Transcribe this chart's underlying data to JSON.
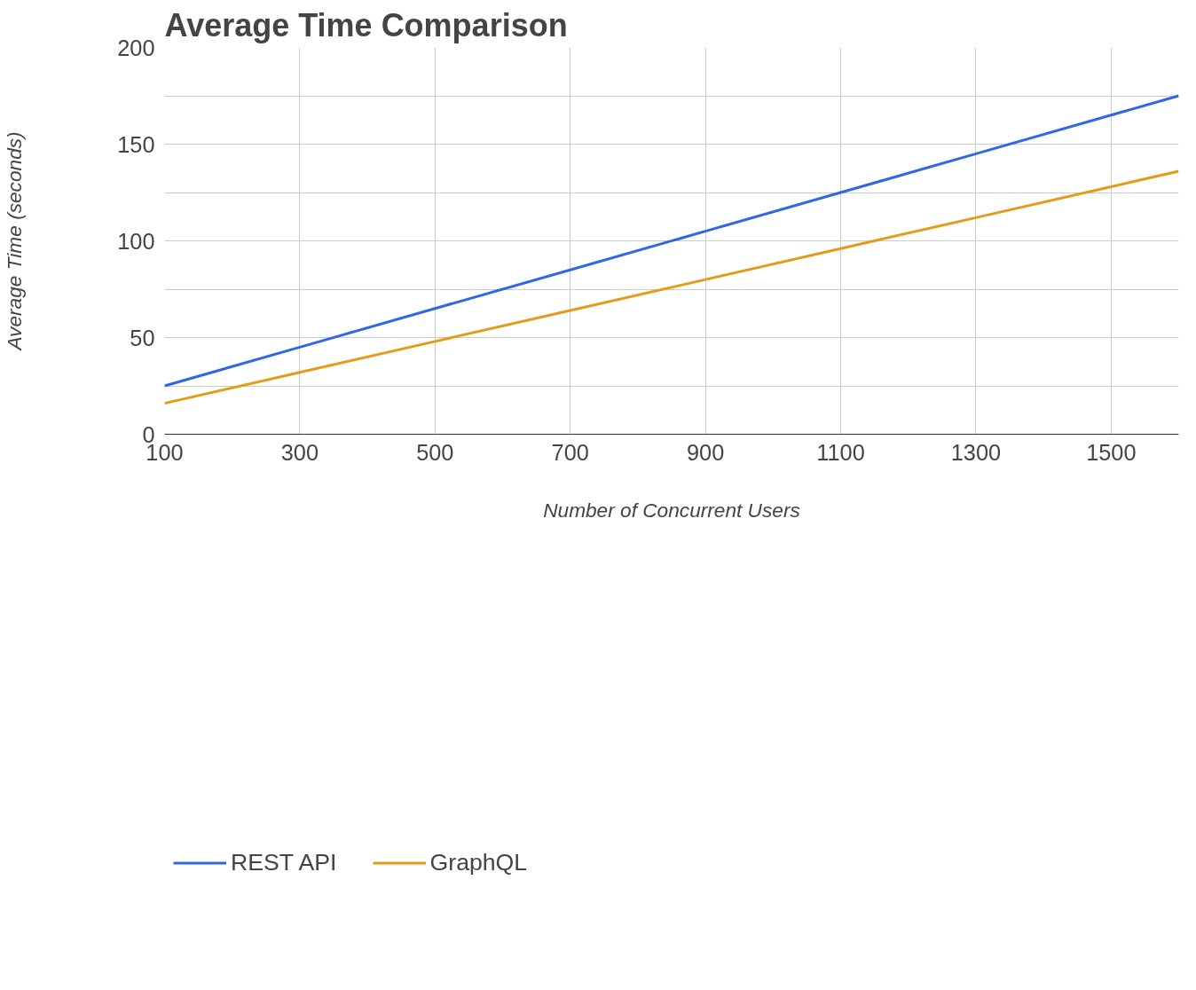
{
  "chart_data": {
    "type": "line",
    "title": "Average Time Comparison",
    "xlabel": "Number of Concurrent Users",
    "ylabel": "Average Time (seconds)",
    "x": [
      100,
      300,
      500,
      700,
      900,
      1100,
      1300,
      1500,
      1600
    ],
    "series": [
      {
        "name": "REST API",
        "color": "#3366e6",
        "values": [
          25,
          45,
          65,
          85,
          105,
          125,
          145,
          165,
          175
        ]
      },
      {
        "name": "GraphQL",
        "color": "#e69a1a",
        "values": [
          16,
          32,
          48,
          64,
          80,
          96,
          112,
          128,
          136
        ]
      }
    ],
    "xlim": [
      100,
      1600
    ],
    "xticks": [
      100,
      300,
      500,
      700,
      900,
      1100,
      1300,
      1500
    ],
    "ylim": [
      0,
      200
    ],
    "yticks": [
      0,
      {
        "value": 25,
        "label": null
      },
      50,
      {
        "value": 75,
        "label": null
      },
      100,
      {
        "value": 125,
        "label": null
      },
      150,
      {
        "value": 175,
        "label": null
      },
      200
    ],
    "grid": true,
    "legend": "bottom left",
    "marker": "none",
    "line_style": "solid"
  }
}
